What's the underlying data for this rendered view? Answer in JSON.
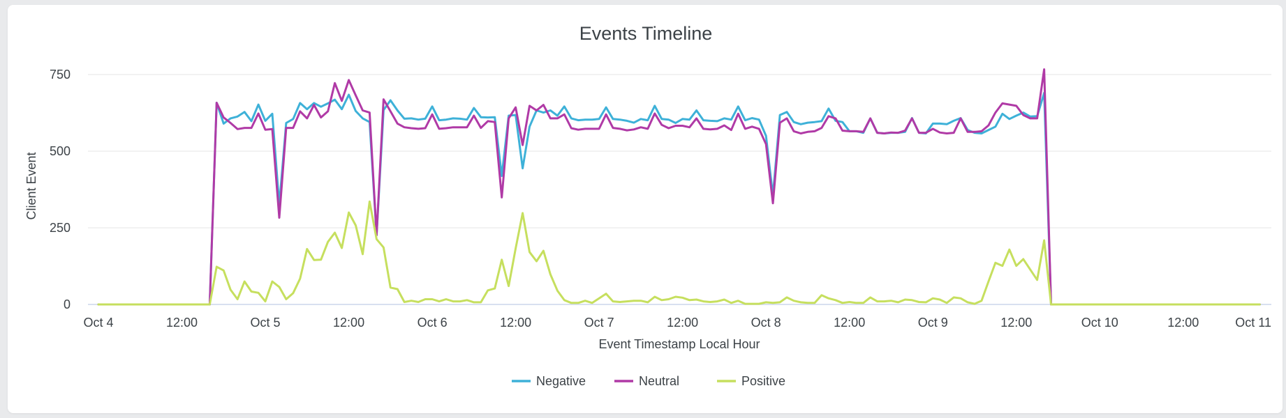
{
  "card": {
    "title": "Events Timeline"
  },
  "chart_data": {
    "type": "line",
    "title": "Events Timeline",
    "xlabel": "Event Timestamp Local Hour",
    "ylabel": "Client Event",
    "x_unit": "hour offset from Oct 4 00:00 (hourly buckets)",
    "x_start_hour": 0,
    "x_step_hours": 1,
    "xlim_hours": [
      0,
      168
    ],
    "ylim": [
      0,
      750
    ],
    "y_ticks": [
      0,
      250,
      500,
      750
    ],
    "x_ticks": [
      {
        "hour": 0,
        "label": "Oct 4"
      },
      {
        "hour": 12,
        "label": "12:00"
      },
      {
        "hour": 24,
        "label": "Oct 5"
      },
      {
        "hour": 36,
        "label": "12:00"
      },
      {
        "hour": 48,
        "label": "Oct 6"
      },
      {
        "hour": 60,
        "label": "12:00"
      },
      {
        "hour": 72,
        "label": "Oct 7"
      },
      {
        "hour": 84,
        "label": "12:00"
      },
      {
        "hour": 96,
        "label": "Oct 8"
      },
      {
        "hour": 108,
        "label": "12:00"
      },
      {
        "hour": 120,
        "label": "Oct 9"
      },
      {
        "hour": 132,
        "label": "12:00"
      },
      {
        "hour": 144,
        "label": "Oct 10"
      },
      {
        "hour": 156,
        "label": "12:00"
      },
      {
        "hour": 168,
        "label": "Oct 11"
      }
    ],
    "grid": true,
    "legend_position": "bottom-center",
    "series": [
      {
        "name": "Negative",
        "color": "#3eb1d8",
        "values": [
          0,
          0,
          0,
          0,
          0,
          0,
          0,
          0,
          0,
          0,
          0,
          0,
          0,
          0,
          0,
          0,
          0,
          658,
          590,
          607,
          613,
          628,
          598,
          652,
          599,
          622,
          325,
          592,
          605,
          657,
          637,
          657,
          645,
          656,
          668,
          637,
          684,
          631,
          607,
          595,
          226,
          634,
          666,
          633,
          606,
          607,
          603,
          606,
          646,
          601,
          603,
          607,
          606,
          603,
          641,
          611,
          610,
          611,
          419,
          616,
          618,
          444,
          580,
          633,
          626,
          633,
          616,
          646,
          607,
          601,
          603,
          603,
          605,
          643,
          605,
          603,
          599,
          593,
          605,
          601,
          648,
          605,
          603,
          592,
          605,
          603,
          633,
          601,
          599,
          598,
          607,
          603,
          646,
          601,
          608,
          603,
          550,
          355,
          618,
          628,
          595,
          588,
          593,
          595,
          598,
          639,
          599,
          595,
          565,
          565,
          560,
          607,
          560,
          558,
          560,
          560,
          563,
          608,
          560,
          558,
          590,
          590,
          588,
          599,
          608,
          569,
          560,
          558,
          569,
          580,
          622,
          605,
          616,
          626,
          613,
          614,
          690,
          0,
          0,
          0,
          0,
          0,
          0,
          0,
          0,
          0,
          0,
          0,
          0,
          0,
          0,
          0,
          0,
          0,
          0,
          0,
          0,
          0,
          0,
          0,
          0,
          0,
          0,
          0,
          0,
          0,
          0,
          0
        ]
      },
      {
        "name": "Neutral",
        "color": "#b03aa6",
        "values": [
          0,
          0,
          0,
          0,
          0,
          0,
          0,
          0,
          0,
          0,
          0,
          0,
          0,
          0,
          0,
          0,
          0,
          658,
          610,
          592,
          572,
          576,
          576,
          623,
          570,
          572,
          283,
          576,
          576,
          630,
          607,
          651,
          610,
          630,
          722,
          664,
          732,
          682,
          633,
          626,
          226,
          669,
          630,
          590,
          578,
          575,
          573,
          575,
          620,
          573,
          575,
          578,
          578,
          578,
          616,
          576,
          598,
          595,
          349,
          607,
          643,
          520,
          648,
          633,
          651,
          607,
          607,
          620,
          575,
          570,
          573,
          573,
          573,
          620,
          576,
          573,
          568,
          571,
          578,
          573,
          623,
          586,
          575,
          583,
          583,
          578,
          607,
          573,
          571,
          573,
          584,
          569,
          622,
          573,
          580,
          573,
          523,
          330,
          593,
          607,
          565,
          558,
          563,
          565,
          576,
          614,
          607,
          567,
          565,
          565,
          563,
          607,
          560,
          558,
          561,
          560,
          567,
          607,
          560,
          560,
          573,
          561,
          558,
          560,
          607,
          563,
          563,
          565,
          584,
          626,
          656,
          652,
          648,
          618,
          607,
          607,
          767,
          0,
          0,
          0,
          0,
          0,
          0,
          0,
          0,
          0,
          0,
          0,
          0,
          0,
          0,
          0,
          0,
          0,
          0,
          0,
          0,
          0,
          0,
          0,
          0,
          0,
          0,
          0,
          0,
          0,
          0,
          0
        ]
      },
      {
        "name": "Positive",
        "color": "#c6df5e",
        "values": [
          0,
          0,
          0,
          0,
          0,
          0,
          0,
          0,
          0,
          0,
          0,
          0,
          0,
          0,
          0,
          0,
          0,
          123,
          111,
          48,
          17,
          75,
          42,
          38,
          10,
          75,
          57,
          17,
          37,
          84,
          181,
          145,
          146,
          204,
          234,
          184,
          300,
          258,
          164,
          336,
          213,
          186,
          55,
          50,
          8,
          12,
          8,
          17,
          17,
          10,
          17,
          10,
          10,
          14,
          7,
          7,
          46,
          52,
          146,
          60,
          183,
          298,
          171,
          141,
          175,
          98,
          45,
          14,
          5,
          5,
          12,
          5,
          20,
          35,
          10,
          8,
          10,
          12,
          12,
          7,
          25,
          14,
          17,
          25,
          22,
          14,
          16,
          10,
          8,
          10,
          16,
          5,
          12,
          2,
          2,
          2,
          7,
          5,
          7,
          23,
          12,
          7,
          5,
          5,
          30,
          20,
          14,
          5,
          8,
          5,
          5,
          23,
          10,
          10,
          12,
          7,
          16,
          14,
          8,
          7,
          20,
          16,
          5,
          23,
          20,
          7,
          2,
          12,
          75,
          136,
          126,
          179,
          126,
          148,
          114,
          80,
          209,
          0,
          0,
          0,
          0,
          0,
          0,
          0,
          0,
          0,
          0,
          0,
          0,
          0,
          0,
          0,
          0,
          0,
          0,
          0,
          0,
          0,
          0,
          0,
          0,
          0,
          0,
          0,
          0,
          0,
          0,
          0
        ]
      }
    ]
  }
}
